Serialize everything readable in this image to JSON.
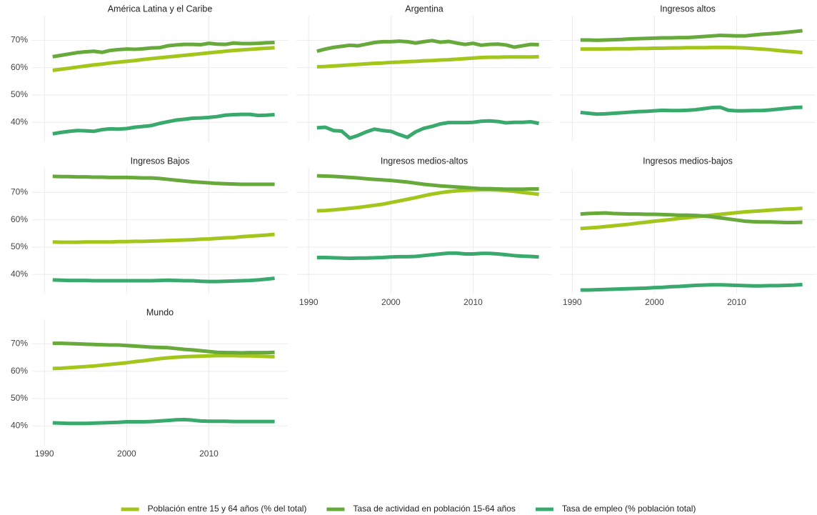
{
  "chart_data": [
    {
      "type": "line",
      "title": "América Latina y el Caribe",
      "x": [
        1991,
        1992,
        1993,
        1994,
        1995,
        1996,
        1997,
        1998,
        1999,
        2000,
        2001,
        2002,
        2003,
        2004,
        2005,
        2006,
        2007,
        2008,
        2009,
        2010,
        2011,
        2012,
        2013,
        2014,
        2015,
        2016,
        2017,
        2018
      ],
      "xlim": [
        1988.5,
        2019.6
      ],
      "xticks": [
        1990,
        2000,
        2010
      ],
      "ylim": [
        33,
        79
      ],
      "yticks": [
        {
          "value": 40,
          "label": "40%"
        },
        {
          "value": 50,
          "label": "50%"
        },
        {
          "value": 60,
          "label": "60%"
        },
        {
          "value": 70,
          "label": "70%"
        }
      ],
      "grid": true,
      "series": [
        {
          "name": "Población entre 15 y 64 años (% del total)",
          "color": "#a3c61c",
          "values": [
            59.0,
            59.4,
            59.8,
            60.2,
            60.6,
            61.0,
            61.3,
            61.7,
            62.0,
            62.3,
            62.6,
            63.0,
            63.3,
            63.6,
            63.9,
            64.2,
            64.5,
            64.8,
            65.1,
            65.4,
            65.7,
            66.0,
            66.3,
            66.5,
            66.7,
            66.9,
            67.1,
            67.3
          ]
        },
        {
          "name": "Tasa de actividad en población 15-64 años",
          "color": "#67a93a",
          "values": [
            64.0,
            64.5,
            65.0,
            65.5,
            65.8,
            66.0,
            65.6,
            66.3,
            66.6,
            66.8,
            66.7,
            66.9,
            67.2,
            67.3,
            68.0,
            68.3,
            68.5,
            68.5,
            68.4,
            68.9,
            68.6,
            68.5,
            69.0,
            68.8,
            68.8,
            68.9,
            69.1,
            69.2
          ]
        },
        {
          "name": "Tasa de empleo (% población total)",
          "color": "#3aa96e",
          "values": [
            35.8,
            36.3,
            36.7,
            37.0,
            36.9,
            36.7,
            37.3,
            37.6,
            37.5,
            37.7,
            38.2,
            38.5,
            38.8,
            39.6,
            40.2,
            40.8,
            41.1,
            41.5,
            41.6,
            41.8,
            42.1,
            42.6,
            42.8,
            42.9,
            42.9,
            42.5,
            42.6,
            42.8
          ]
        }
      ]
    },
    {
      "type": "line",
      "title": "Argentina",
      "x": [
        1991,
        1992,
        1993,
        1994,
        1995,
        1996,
        1997,
        1998,
        1999,
        2000,
        2001,
        2002,
        2003,
        2004,
        2005,
        2006,
        2007,
        2008,
        2009,
        2010,
        2011,
        2012,
        2013,
        2014,
        2015,
        2016,
        2017,
        2018
      ],
      "xlim": [
        1988.5,
        2019.6
      ],
      "xticks": [
        1990,
        2000,
        2010
      ],
      "ylim": [
        33,
        79
      ],
      "yticks": [
        40,
        50,
        60,
        70
      ],
      "grid": true,
      "series": [
        {
          "color": "#a3c61c",
          "values": [
            60.3,
            60.4,
            60.6,
            60.8,
            61.0,
            61.2,
            61.4,
            61.6,
            61.7,
            61.9,
            62.0,
            62.2,
            62.3,
            62.5,
            62.6,
            62.8,
            62.9,
            63.1,
            63.3,
            63.5,
            63.7,
            63.8,
            63.8,
            63.9,
            63.9,
            63.9,
            63.9,
            64.0
          ]
        },
        {
          "color": "#67a93a",
          "values": [
            66.0,
            66.8,
            67.4,
            67.8,
            68.2,
            68.0,
            68.6,
            69.2,
            69.5,
            69.5,
            69.7,
            69.5,
            69.0,
            69.5,
            69.9,
            69.3,
            69.6,
            69.0,
            68.5,
            68.9,
            68.2,
            68.5,
            68.6,
            68.3,
            67.5,
            68.0,
            68.5,
            68.4
          ]
        },
        {
          "color": "#3aa96e",
          "values": [
            38.0,
            38.2,
            37.0,
            36.8,
            34.2,
            35.2,
            36.5,
            37.5,
            37.0,
            36.7,
            35.5,
            34.5,
            36.5,
            37.8,
            38.5,
            39.4,
            39.9,
            39.9,
            39.9,
            40.0,
            40.4,
            40.5,
            40.3,
            39.8,
            40.0,
            40.0,
            40.2,
            39.6
          ]
        }
      ]
    },
    {
      "type": "line",
      "title": "Ingresos altos",
      "x": [
        1991,
        1992,
        1993,
        1994,
        1995,
        1996,
        1997,
        1998,
        1999,
        2000,
        2001,
        2002,
        2003,
        2004,
        2005,
        2006,
        2007,
        2008,
        2009,
        2010,
        2011,
        2012,
        2013,
        2014,
        2015,
        2016,
        2017,
        2018
      ],
      "xlim": [
        1988.5,
        2019.6
      ],
      "xticks": [
        1990,
        2000,
        2010
      ],
      "ylim": [
        33,
        79
      ],
      "yticks": [
        40,
        50,
        60,
        70
      ],
      "grid": true,
      "series": [
        {
          "color": "#a3c61c",
          "values": [
            66.8,
            66.8,
            66.8,
            66.8,
            66.9,
            66.9,
            66.9,
            67.0,
            67.0,
            67.1,
            67.1,
            67.2,
            67.2,
            67.3,
            67.3,
            67.3,
            67.4,
            67.4,
            67.4,
            67.3,
            67.2,
            67.0,
            66.8,
            66.6,
            66.3,
            66.0,
            65.8,
            65.5
          ]
        },
        {
          "color": "#67a93a",
          "values": [
            70.1,
            70.1,
            70.0,
            70.1,
            70.2,
            70.3,
            70.5,
            70.6,
            70.7,
            70.8,
            70.9,
            70.9,
            71.0,
            71.0,
            71.2,
            71.4,
            71.6,
            71.8,
            71.7,
            71.6,
            71.6,
            71.9,
            72.2,
            72.4,
            72.6,
            72.9,
            73.2,
            73.5
          ]
        },
        {
          "color": "#3aa96e",
          "values": [
            43.6,
            43.3,
            43.0,
            43.1,
            43.3,
            43.5,
            43.7,
            43.9,
            44.0,
            44.2,
            44.4,
            44.3,
            44.3,
            44.4,
            44.6,
            45.0,
            45.4,
            45.5,
            44.4,
            44.2,
            44.2,
            44.3,
            44.3,
            44.5,
            44.8,
            45.1,
            45.4,
            45.5
          ]
        }
      ]
    },
    {
      "type": "line",
      "title": "Ingresos Bajos",
      "x": [
        1991,
        1992,
        1993,
        1994,
        1995,
        1996,
        1997,
        1998,
        1999,
        2000,
        2001,
        2002,
        2003,
        2004,
        2005,
        2006,
        2007,
        2008,
        2009,
        2010,
        2011,
        2012,
        2013,
        2014,
        2015,
        2016,
        2017,
        2018
      ],
      "xlim": [
        1988.5,
        2019.6
      ],
      "xticks": [
        1990,
        2000,
        2010
      ],
      "ylim": [
        33,
        79
      ],
      "yticks": [
        {
          "value": 40,
          "label": "40%"
        },
        {
          "value": 50,
          "label": "50%"
        },
        {
          "value": 60,
          "label": "60%"
        },
        {
          "value": 70,
          "label": "70%"
        }
      ],
      "grid": true,
      "series": [
        {
          "color": "#a3c61c",
          "values": [
            51.9,
            51.8,
            51.8,
            51.8,
            51.9,
            51.9,
            51.9,
            51.9,
            52.0,
            52.0,
            52.1,
            52.1,
            52.2,
            52.3,
            52.4,
            52.5,
            52.6,
            52.7,
            52.9,
            53.0,
            53.2,
            53.4,
            53.5,
            53.8,
            54.0,
            54.2,
            54.4,
            54.7
          ]
        },
        {
          "color": "#67a93a",
          "values": [
            75.9,
            75.8,
            75.8,
            75.7,
            75.7,
            75.6,
            75.6,
            75.5,
            75.5,
            75.5,
            75.4,
            75.3,
            75.3,
            75.1,
            74.8,
            74.5,
            74.2,
            73.9,
            73.7,
            73.5,
            73.3,
            73.2,
            73.1,
            73.0,
            73.0,
            73.0,
            73.0,
            73.0
          ]
        },
        {
          "color": "#3aa96e",
          "values": [
            38.0,
            37.9,
            37.8,
            37.8,
            37.8,
            37.7,
            37.7,
            37.7,
            37.7,
            37.7,
            37.7,
            37.7,
            37.7,
            37.8,
            37.9,
            37.8,
            37.7,
            37.7,
            37.5,
            37.4,
            37.4,
            37.5,
            37.6,
            37.7,
            37.8,
            38.0,
            38.3,
            38.6
          ]
        }
      ]
    },
    {
      "type": "line",
      "title": "Ingresos medios-altos",
      "x": [
        1991,
        1992,
        1993,
        1994,
        1995,
        1996,
        1997,
        1998,
        1999,
        2000,
        2001,
        2002,
        2003,
        2004,
        2005,
        2006,
        2007,
        2008,
        2009,
        2010,
        2011,
        2012,
        2013,
        2014,
        2015,
        2016,
        2017,
        2018
      ],
      "xlim": [
        1988.5,
        2019.6
      ],
      "xticks": [
        1990,
        2000,
        2010
      ],
      "ylim": [
        33,
        79
      ],
      "yticks": [
        40,
        50,
        60,
        70
      ],
      "grid": true,
      "series": [
        {
          "color": "#a3c61c",
          "values": [
            63.3,
            63.4,
            63.6,
            63.9,
            64.2,
            64.5,
            64.9,
            65.3,
            65.7,
            66.3,
            66.9,
            67.5,
            68.1,
            68.8,
            69.4,
            69.9,
            70.3,
            70.6,
            70.8,
            70.9,
            71.0,
            71.0,
            70.9,
            70.7,
            70.4,
            70.0,
            69.7,
            69.3
          ]
        },
        {
          "color": "#67a93a",
          "values": [
            76.1,
            76.0,
            75.9,
            75.7,
            75.5,
            75.3,
            75.0,
            74.8,
            74.6,
            74.4,
            74.1,
            73.8,
            73.4,
            73.0,
            72.7,
            72.4,
            72.2,
            72.0,
            71.8,
            71.6,
            71.4,
            71.4,
            71.3,
            71.2,
            71.2,
            71.2,
            71.3,
            71.3
          ]
        },
        {
          "color": "#3aa96e",
          "values": [
            46.2,
            46.2,
            46.1,
            46.0,
            45.9,
            46.0,
            46.0,
            46.1,
            46.2,
            46.4,
            46.5,
            46.5,
            46.6,
            46.9,
            47.2,
            47.5,
            47.8,
            47.8,
            47.5,
            47.5,
            47.7,
            47.7,
            47.5,
            47.2,
            46.9,
            46.7,
            46.6,
            46.4
          ]
        }
      ]
    },
    {
      "type": "line",
      "title": "Ingresos medios-bajos",
      "x": [
        1991,
        1992,
        1993,
        1994,
        1995,
        1996,
        1997,
        1998,
        1999,
        2000,
        2001,
        2002,
        2003,
        2004,
        2005,
        2006,
        2007,
        2008,
        2009,
        2010,
        2011,
        2012,
        2013,
        2014,
        2015,
        2016,
        2017,
        2018
      ],
      "xlim": [
        1988.5,
        2019.6
      ],
      "xticks": [
        1990,
        2000,
        2010
      ],
      "ylim": [
        33,
        79
      ],
      "yticks": [
        40,
        50,
        60,
        70
      ],
      "grid": true,
      "series": [
        {
          "color": "#a3c61c",
          "values": [
            56.8,
            57.0,
            57.2,
            57.5,
            57.8,
            58.1,
            58.4,
            58.8,
            59.1,
            59.5,
            59.8,
            60.1,
            60.5,
            60.8,
            61.1,
            61.4,
            61.7,
            62.0,
            62.3,
            62.6,
            62.9,
            63.1,
            63.3,
            63.5,
            63.7,
            63.9,
            64.0,
            64.2
          ]
        },
        {
          "color": "#67a93a",
          "values": [
            62.1,
            62.3,
            62.4,
            62.5,
            62.3,
            62.2,
            62.1,
            62.1,
            62.0,
            62.0,
            61.9,
            61.8,
            61.7,
            61.7,
            61.6,
            61.4,
            61.1,
            60.7,
            60.3,
            59.9,
            59.5,
            59.3,
            59.2,
            59.2,
            59.1,
            59.0,
            59.0,
            59.1
          ]
        },
        {
          "color": "#3aa96e",
          "values": [
            34.3,
            34.3,
            34.4,
            34.5,
            34.6,
            34.7,
            34.8,
            34.9,
            35.0,
            35.2,
            35.3,
            35.5,
            35.6,
            35.8,
            36.0,
            36.1,
            36.2,
            36.2,
            36.1,
            36.0,
            35.9,
            35.8,
            35.8,
            35.9,
            35.9,
            36.0,
            36.1,
            36.3
          ]
        }
      ]
    },
    {
      "type": "line",
      "title": "Mundo",
      "x": [
        1991,
        1992,
        1993,
        1994,
        1995,
        1996,
        1997,
        1998,
        1999,
        2000,
        2001,
        2002,
        2003,
        2004,
        2005,
        2006,
        2007,
        2008,
        2009,
        2010,
        2011,
        2012,
        2013,
        2014,
        2015,
        2016,
        2017,
        2018
      ],
      "xlim": [
        1988.5,
        2019.6
      ],
      "xticks": [
        1990,
        2000,
        2010
      ],
      "ylim": [
        33,
        79
      ],
      "yticks": [
        {
          "value": 40,
          "label": "40%"
        },
        {
          "value": 50,
          "label": "50%"
        },
        {
          "value": 60,
          "label": "60%"
        },
        {
          "value": 70,
          "label": "70%"
        }
      ],
      "grid": true,
      "series": [
        {
          "color": "#a3c61c",
          "values": [
            61.0,
            61.1,
            61.3,
            61.5,
            61.7,
            61.9,
            62.2,
            62.5,
            62.8,
            63.1,
            63.5,
            63.8,
            64.2,
            64.6,
            64.9,
            65.1,
            65.3,
            65.4,
            65.5,
            65.6,
            65.7,
            65.7,
            65.7,
            65.6,
            65.6,
            65.5,
            65.4,
            65.3
          ]
        },
        {
          "color": "#67a93a",
          "values": [
            70.2,
            70.2,
            70.1,
            70.0,
            69.9,
            69.8,
            69.7,
            69.6,
            69.6,
            69.4,
            69.2,
            69.0,
            68.8,
            68.7,
            68.6,
            68.3,
            68.0,
            67.8,
            67.5,
            67.2,
            66.9,
            66.8,
            66.8,
            66.7,
            66.8,
            66.8,
            66.8,
            66.9
          ]
        },
        {
          "color": "#3aa96e",
          "values": [
            41.1,
            41.0,
            40.9,
            40.9,
            40.9,
            41.0,
            41.1,
            41.2,
            41.3,
            41.5,
            41.5,
            41.5,
            41.6,
            41.8,
            42.0,
            42.2,
            42.3,
            42.1,
            41.8,
            41.7,
            41.7,
            41.7,
            41.6,
            41.6,
            41.6,
            41.6,
            41.6,
            41.6
          ]
        }
      ]
    }
  ]
}
